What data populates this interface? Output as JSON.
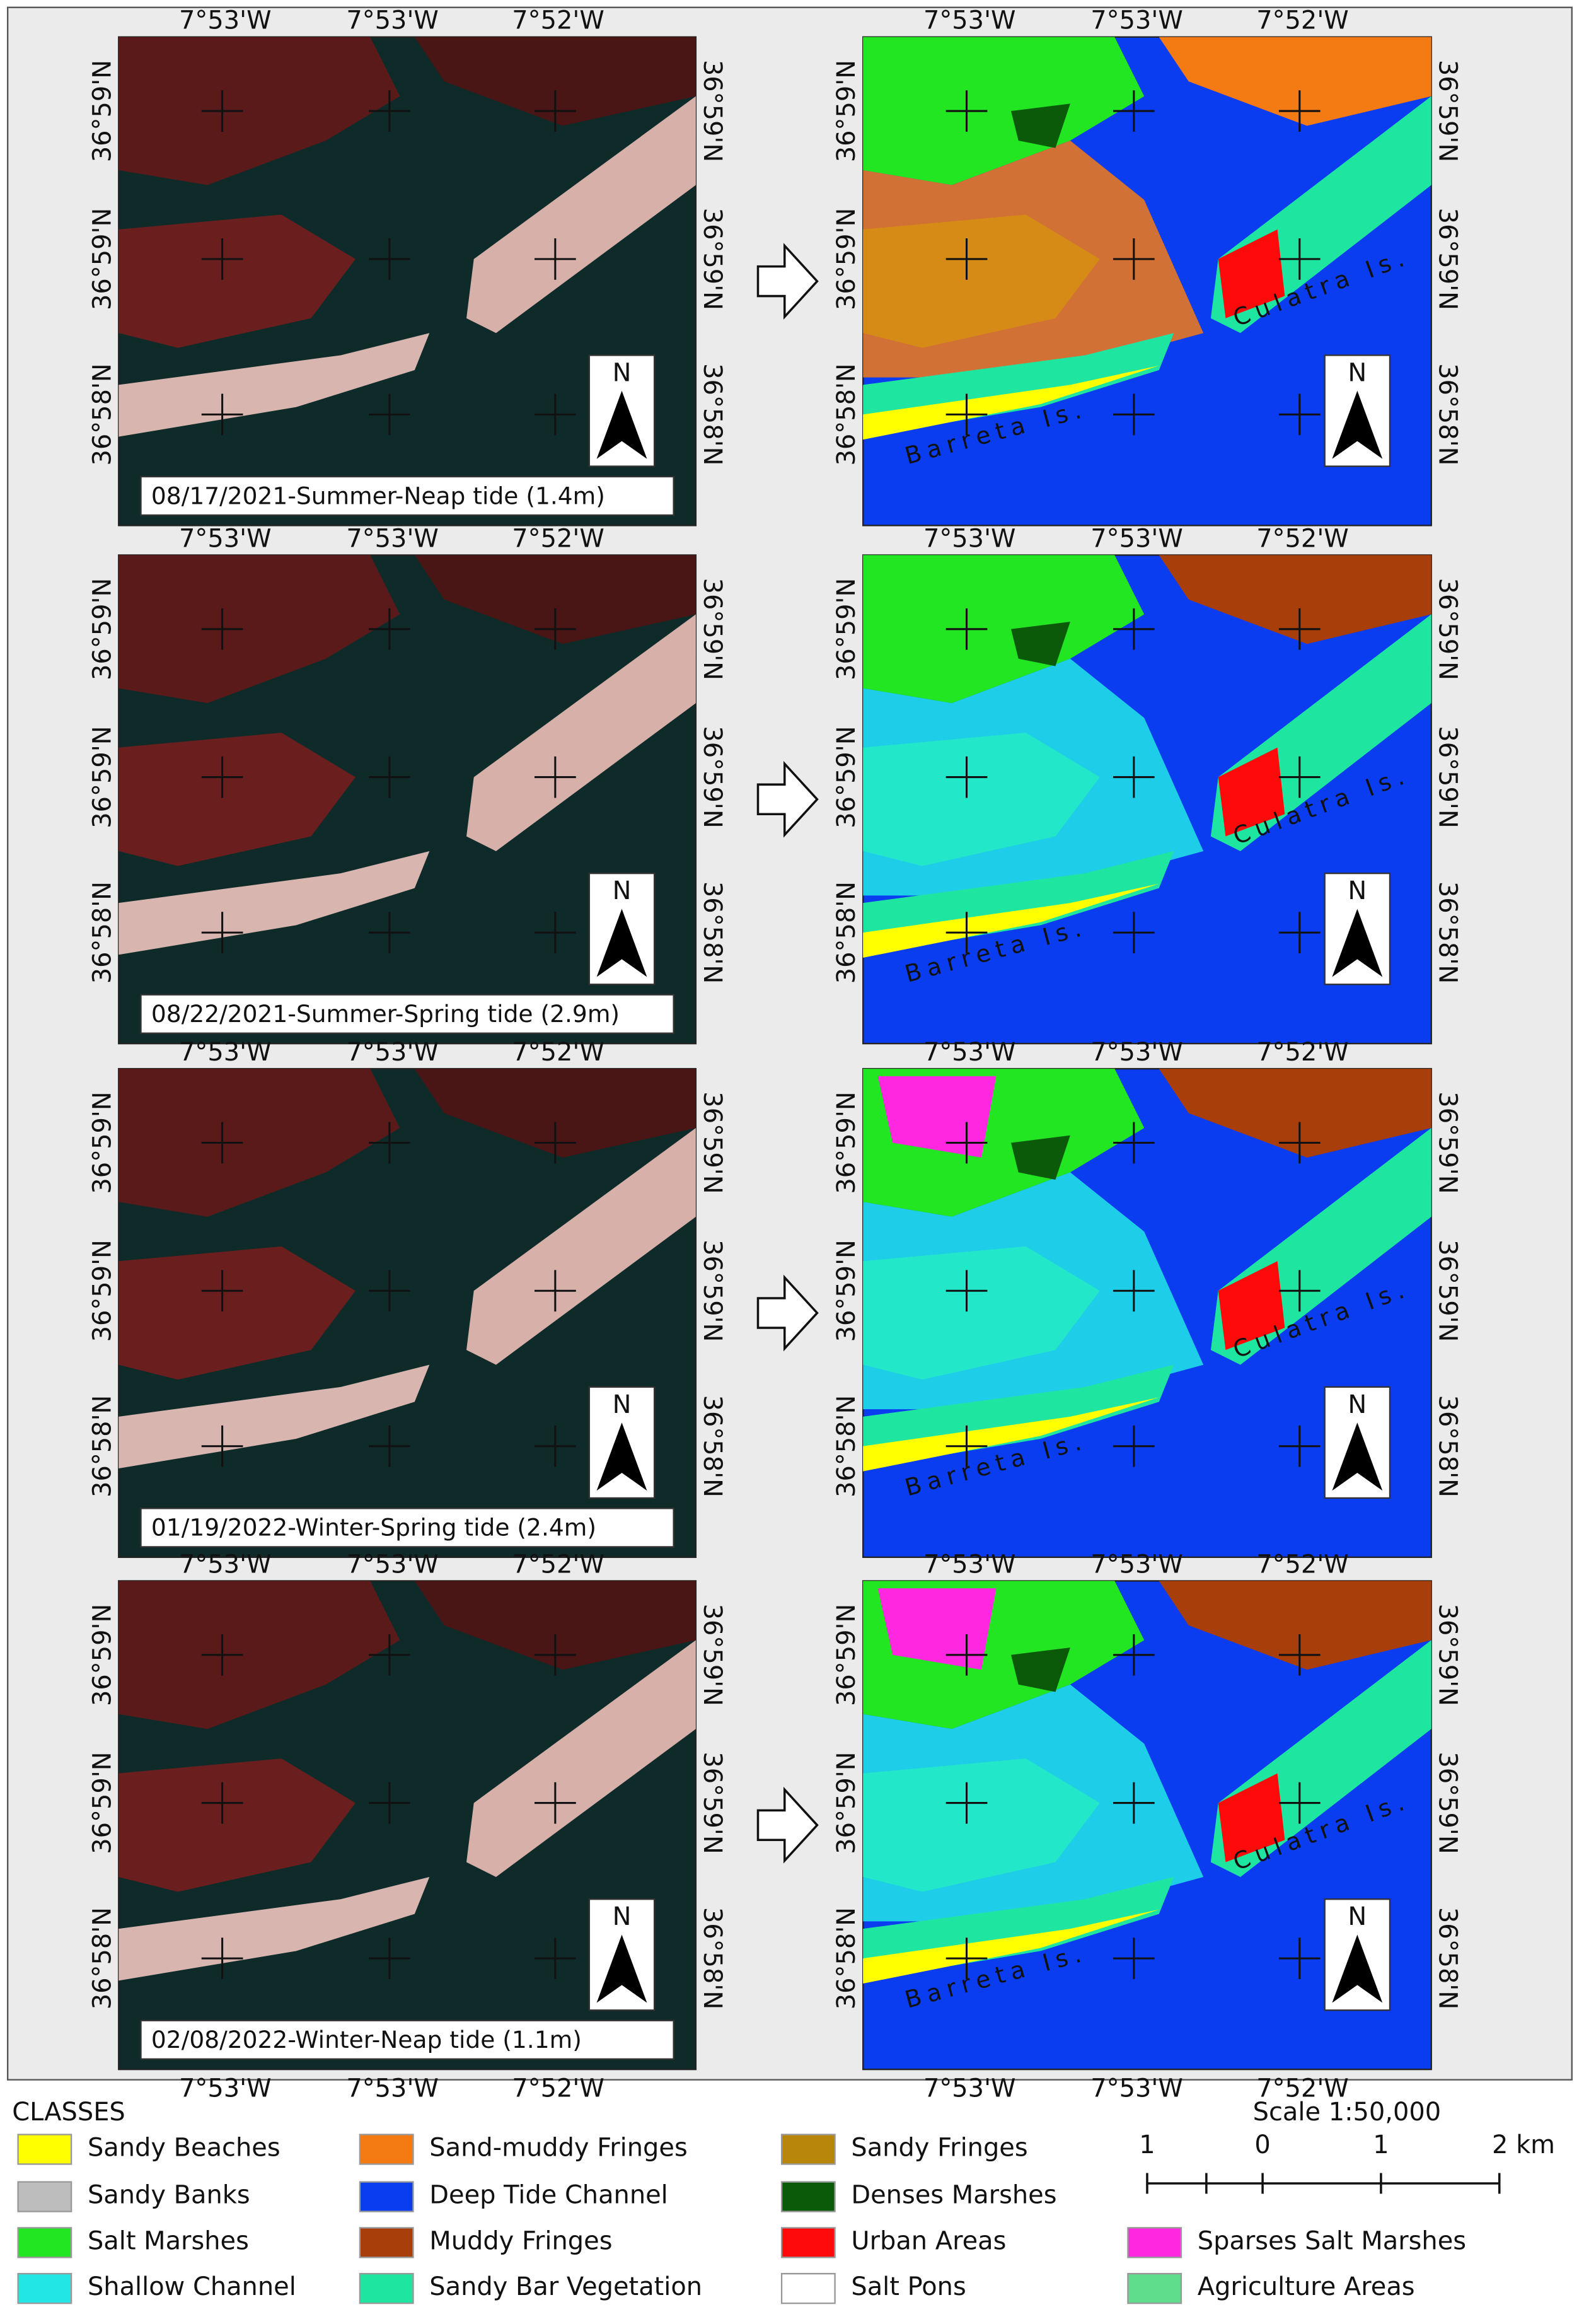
{
  "panels": [
    {
      "caption": "08/17/2021-Summer-Neap tide (1.4m)"
    },
    {
      "caption": "08/22/2021-Summer-Spring tide (2.9m)"
    },
    {
      "caption": "01/19/2022-Winter-Spring tide (2.4m)"
    },
    {
      "caption": "02/08/2022-Winter-Neap tide (1.1m)"
    }
  ],
  "coordinate_labels": {
    "lon": [
      "7°53'W",
      "7°53'W",
      "7°52'W"
    ],
    "lat": [
      "36°59'N",
      "36°59'N",
      "36°58'N"
    ]
  },
  "north_label": "N",
  "island_labels": [
    "Culatra Is.",
    "Barreta Is."
  ],
  "legend": {
    "title": "CLASSES",
    "items": [
      {
        "label": "Sandy Beaches",
        "color": "#ffff00"
      },
      {
        "label": "Sandy Banks",
        "color": "#bdbdbd"
      },
      {
        "label": "Salt Marshes",
        "color": "#22e622"
      },
      {
        "label": "Shallow Channel",
        "color": "#22e6e6"
      },
      {
        "label": "Sand-muddy Fringes",
        "color": "#f47a14"
      },
      {
        "label": "Deep Tide Channel",
        "color": "#0a3cf0"
      },
      {
        "label": "Muddy Fringes",
        "color": "#a83e0a"
      },
      {
        "label": "Sandy Bar Vegetation",
        "color": "#1ee6a0"
      },
      {
        "label": "Sandy Fringes",
        "color": "#b8860b"
      },
      {
        "label": "Denses Marshes",
        "color": "#0a5a0a"
      },
      {
        "label": "Urban Areas",
        "color": "#ff0a0a"
      },
      {
        "label": "Salt Pons",
        "color": "#ffffff"
      },
      {
        "label": "Sparses Salt Marshes",
        "color": "#ff28e0"
      },
      {
        "label": "Agriculture Areas",
        "color": "#5fdc8c"
      }
    ]
  },
  "scale": {
    "title": "Scale 1:50,000",
    "labels": [
      "1",
      "0",
      "1",
      "2 km"
    ]
  }
}
